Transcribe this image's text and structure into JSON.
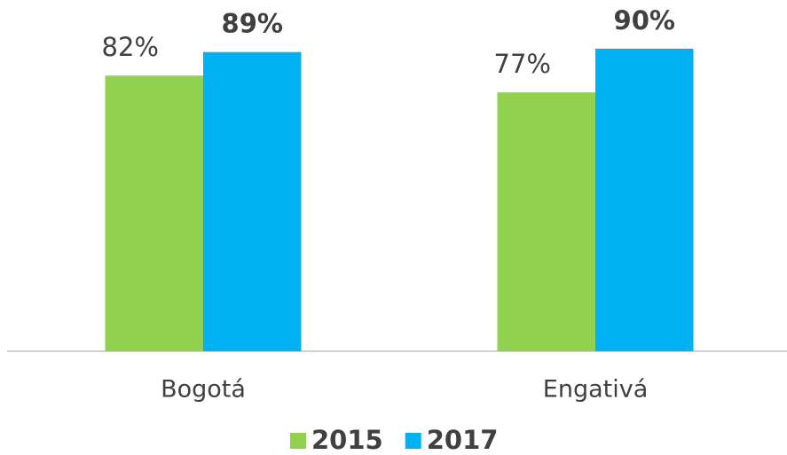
{
  "chart_data": {
    "type": "bar",
    "categories": [
      "Bogotá",
      "Engativá"
    ],
    "series": [
      {
        "name": "2015",
        "color": "#92d050",
        "values": [
          82,
          77
        ],
        "value_labels": [
          "82%",
          "77%"
        ]
      },
      {
        "name": "2017",
        "color": "#00b0f0",
        "values": [
          89,
          90
        ],
        "value_labels": [
          "89%",
          "90%"
        ]
      }
    ],
    "ylim": [
      0,
      100
    ],
    "legend": "bottom"
  }
}
